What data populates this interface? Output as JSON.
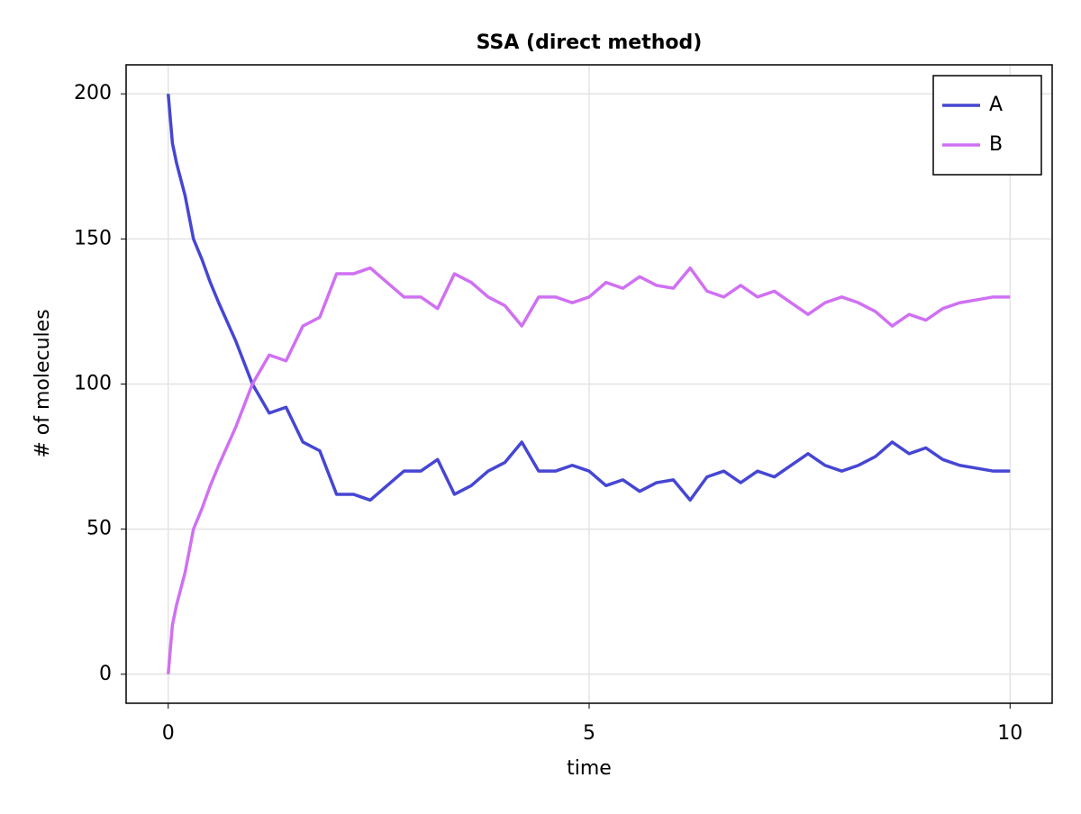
{
  "chart_data": {
    "type": "line",
    "title": "SSA (direct method)",
    "x_label": "time",
    "y_label": "# of molecules",
    "x": [
      0,
      0.05,
      0.1,
      0.2,
      0.3,
      0.4,
      0.5,
      0.6,
      0.8,
      1.0,
      1.2,
      1.4,
      1.6,
      1.8,
      2.0,
      2.2,
      2.4,
      2.6,
      2.8,
      3.0,
      3.2,
      3.4,
      3.6,
      3.8,
      4.0,
      4.2,
      4.4,
      4.6,
      4.8,
      5.0,
      5.2,
      5.4,
      5.6,
      5.8,
      6.0,
      6.2,
      6.4,
      6.6,
      6.8,
      7.0,
      7.2,
      7.4,
      7.6,
      7.8,
      8.0,
      8.2,
      8.4,
      8.6,
      8.8,
      9.0,
      9.2,
      9.4,
      9.6,
      9.8,
      10.0
    ],
    "series": [
      {
        "name": "A",
        "color": "#4646d4",
        "values": [
          200,
          183,
          176,
          165,
          150,
          143,
          135,
          128,
          115,
          100,
          90,
          92,
          80,
          77,
          62,
          62,
          60,
          65,
          70,
          70,
          74,
          62,
          65,
          70,
          73,
          80,
          70,
          70,
          72,
          70,
          65,
          67,
          63,
          66,
          67,
          60,
          68,
          70,
          66,
          70,
          68,
          72,
          76,
          72,
          70,
          72,
          75,
          80,
          76,
          78,
          74,
          72,
          71,
          70,
          70
        ]
      },
      {
        "name": "B",
        "color": "#d070f2",
        "values": [
          0,
          17,
          24,
          35,
          50,
          57,
          65,
          72,
          85,
          100,
          110,
          108,
          120,
          123,
          138,
          138,
          140,
          135,
          130,
          130,
          126,
          138,
          135,
          130,
          127,
          120,
          130,
          130,
          128,
          130,
          135,
          133,
          137,
          134,
          133,
          140,
          132,
          130,
          134,
          130,
          132,
          128,
          124,
          128,
          130,
          128,
          125,
          120,
          124,
          122,
          126,
          128,
          129,
          130,
          130
        ]
      }
    ],
    "xlim": [
      -0.5,
      10.5
    ],
    "ylim": [
      -10,
      210
    ],
    "xticks": [
      0,
      5,
      10
    ],
    "yticks": [
      0,
      50,
      100,
      150,
      200
    ],
    "grid": true,
    "legend": "top-right"
  }
}
